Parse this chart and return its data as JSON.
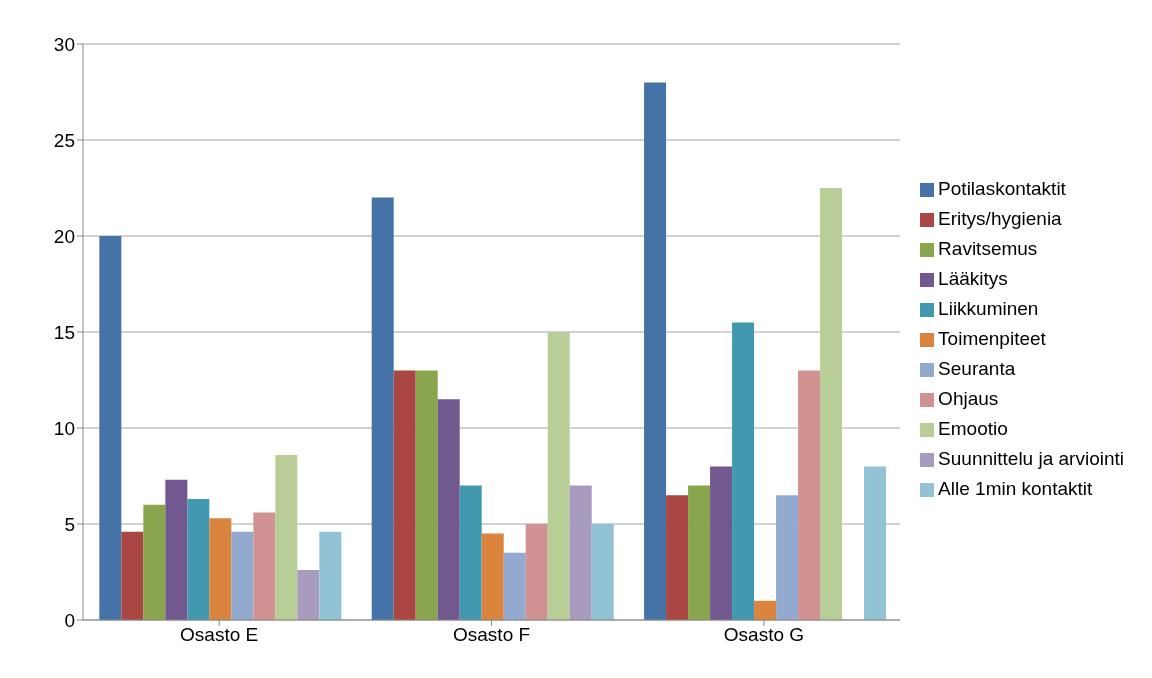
{
  "chart_data": {
    "type": "bar",
    "categories": [
      "Osasto E",
      "Osasto F",
      "Osasto G"
    ],
    "series": [
      {
        "name": "Potilaskontaktit",
        "color": "#4572a7",
        "values": [
          20,
          22,
          28
        ]
      },
      {
        "name": "Eritys/hygienia",
        "color": "#aa4643",
        "values": [
          4.6,
          13,
          6.5
        ]
      },
      {
        "name": "Ravitsemus",
        "color": "#89a54e",
        "values": [
          6,
          13,
          7
        ]
      },
      {
        "name": "Lääkitys",
        "color": "#71588f",
        "values": [
          7.3,
          11.5,
          8
        ]
      },
      {
        "name": "Liikkuminen",
        "color": "#4198af",
        "values": [
          6.3,
          7,
          15.5
        ]
      },
      {
        "name": "Toimenpiteet",
        "color": "#db843d",
        "values": [
          5.3,
          4.5,
          1
        ]
      },
      {
        "name": "Seuranta",
        "color": "#93a9cf",
        "values": [
          4.6,
          3.5,
          6.5
        ]
      },
      {
        "name": "Ohjaus",
        "color": "#d19392",
        "values": [
          5.6,
          5,
          13
        ]
      },
      {
        "name": "Emootio",
        "color": "#b9cd96",
        "values": [
          8.6,
          15,
          22.5
        ]
      },
      {
        "name": "Suunnittelu ja arviointi",
        "color": "#a99bbd",
        "values": [
          2.6,
          7,
          0
        ]
      },
      {
        "name": "Alle 1min kontaktit",
        "color": "#92c3d4",
        "values": [
          4.6,
          5,
          8
        ]
      }
    ],
    "ylim": [
      0,
      30
    ],
    "yticks": [
      0,
      5,
      10,
      15,
      20,
      25,
      30
    ],
    "grid": "y",
    "legend": "right"
  }
}
